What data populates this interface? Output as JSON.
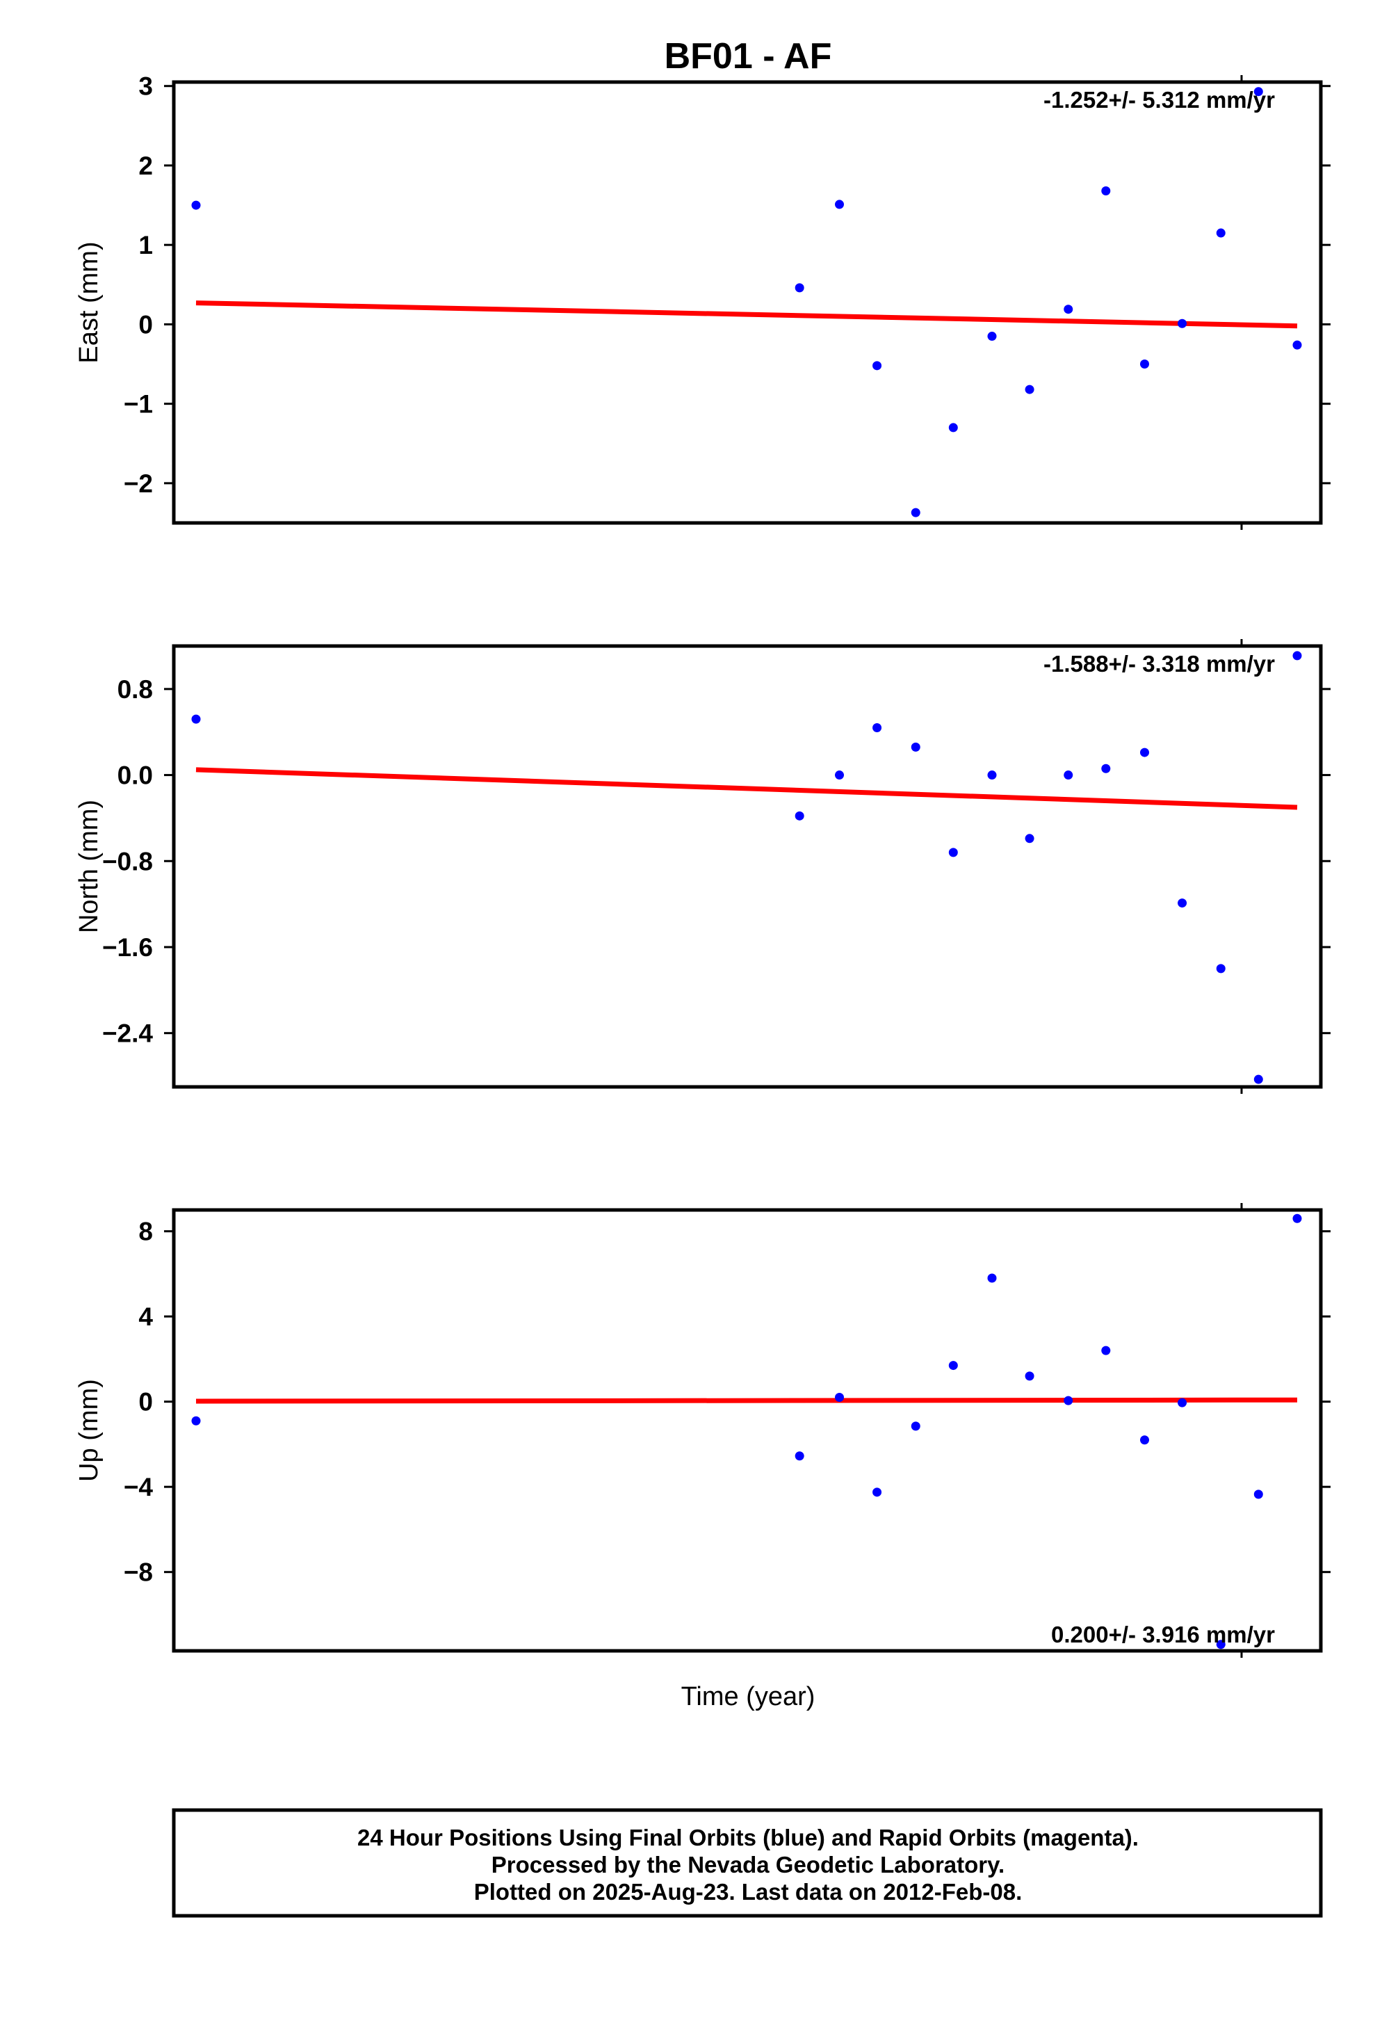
{
  "title": "BF01 - AF",
  "xlabel": "Time (year)",
  "footer": {
    "line1": "24 Hour Positions Using Final Orbits (blue) and Rapid Orbits (magenta).",
    "line2": "Processed by the Nevada Geodetic Laboratory.",
    "line3": "Plotted on 2025-Aug-23. Last data on 2012-Feb-08."
  },
  "colors": {
    "points": "#0000ff",
    "trend": "#ff0000",
    "frame": "#000000"
  },
  "chart_data": [
    {
      "type": "scatter",
      "ylabel": "East (mm)",
      "rate_text": "-1.252+/- 5.312 mm/yr",
      "rate_position": "top-right",
      "ylim": [
        -2.5,
        3.05
      ],
      "yticks": [
        3,
        2,
        1,
        0,
        -1,
        -2
      ],
      "ytick_labels": [
        "3",
        "2",
        "1",
        "0",
        "−1",
        "−2"
      ],
      "grid": false,
      "series": [
        {
          "x": [
            0.0,
            0.53,
            0.565,
            0.598,
            0.632,
            0.665,
            0.699,
            0.732,
            0.766,
            0.799,
            0.833,
            0.866,
            0.9,
            0.933,
            0.967
          ],
          "y": [
            1.5,
            0.46,
            1.51,
            -0.52,
            -2.37,
            -1.3,
            -0.15,
            -0.82,
            0.19,
            1.68,
            -0.5,
            0.01,
            1.15,
            2.93,
            -0.26
          ]
        }
      ],
      "trend": {
        "x": [
          0.0,
          0.967
        ],
        "y": [
          0.27,
          -0.02
        ]
      }
    },
    {
      "type": "scatter",
      "ylabel": "North (mm)",
      "rate_text": "-1.588+/- 3.318 mm/yr",
      "rate_position": "top-right",
      "ylim": [
        -2.9,
        1.2
      ],
      "yticks": [
        0.8,
        0.0,
        -0.8,
        -1.6,
        -2.4
      ],
      "ytick_labels": [
        "0.8",
        "0.0",
        "−0.8",
        "−1.6",
        "−2.4"
      ],
      "grid": false,
      "series": [
        {
          "x": [
            0.0,
            0.53,
            0.565,
            0.598,
            0.632,
            0.665,
            0.699,
            0.732,
            0.766,
            0.799,
            0.833,
            0.866,
            0.9,
            0.933,
            0.967
          ],
          "y": [
            0.52,
            -0.38,
            0.0,
            0.44,
            0.26,
            -0.72,
            0.0,
            -0.59,
            0.0,
            0.06,
            0.21,
            -1.19,
            -1.8,
            -2.83,
            1.11
          ]
        }
      ],
      "trend": {
        "x": [
          0.0,
          0.967
        ],
        "y": [
          0.05,
          -0.3
        ]
      }
    },
    {
      "type": "scatter",
      "ylabel": "Up (mm)",
      "rate_text": "0.200+/- 3.916 mm/yr",
      "rate_position": "bottom-right",
      "ylim": [
        -11.7,
        9.0
      ],
      "yticks": [
        8,
        4,
        0,
        -4,
        -8
      ],
      "ytick_labels": [
        "8",
        "4",
        "0",
        "−4",
        "−8"
      ],
      "grid": false,
      "series": [
        {
          "x": [
            0.0,
            0.53,
            0.565,
            0.598,
            0.632,
            0.665,
            0.699,
            0.732,
            0.766,
            0.799,
            0.833,
            0.866,
            0.9,
            0.933,
            0.967
          ],
          "y": [
            -0.9,
            -2.55,
            0.2,
            -4.25,
            -1.15,
            1.7,
            5.8,
            1.2,
            0.05,
            2.4,
            -1.8,
            -0.05,
            -11.4,
            -4.35,
            8.6
          ]
        }
      ],
      "trend": {
        "x": [
          0.0,
          0.967
        ],
        "y": [
          0.02,
          0.08
        ]
      }
    }
  ]
}
